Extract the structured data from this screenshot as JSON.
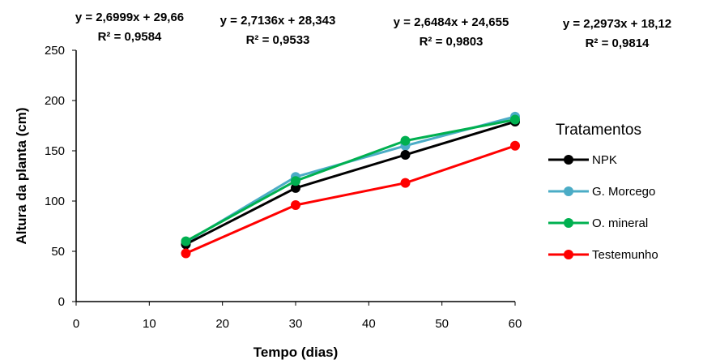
{
  "chart_data": {
    "type": "line",
    "xlabel": "Tempo (dias)",
    "ylabel": "Altura da planta (cm)",
    "xlim": [
      0,
      60
    ],
    "ylim": [
      0,
      250
    ],
    "xticks": [
      "0",
      "10",
      "20",
      "30",
      "40",
      "50",
      "60"
    ],
    "yticks": [
      "0",
      "50",
      "100",
      "150",
      "200",
      "250"
    ],
    "x": [
      15,
      30,
      45,
      60
    ],
    "grid": false,
    "legend_title": "Tratamentos",
    "legend_position": "right",
    "series": [
      {
        "name": "NPK",
        "color": "#000000",
        "values": [
          57,
          113,
          146,
          179
        ],
        "equation": "y = 2,6484x + 24,655",
        "r2": "R² = 0,9803"
      },
      {
        "name": "G. Morcego",
        "color": "#4BACC6",
        "values": [
          59,
          124,
          155,
          184
        ],
        "equation": "y = 2,6999x + 29,66",
        "r2": "R² = 0,9584"
      },
      {
        "name": "O. mineral",
        "color": "#00B050",
        "values": [
          60,
          120,
          160,
          181
        ],
        "equation": "y = 2,7136x + 28,343",
        "r2": "R² = 0,9533"
      },
      {
        "name": "Testemunho",
        "color": "#FF0000",
        "values": [
          48,
          96,
          118,
          155
        ],
        "equation": "y = 2,2973x + 18,12",
        "r2": "R² = 0,9814"
      }
    ]
  }
}
